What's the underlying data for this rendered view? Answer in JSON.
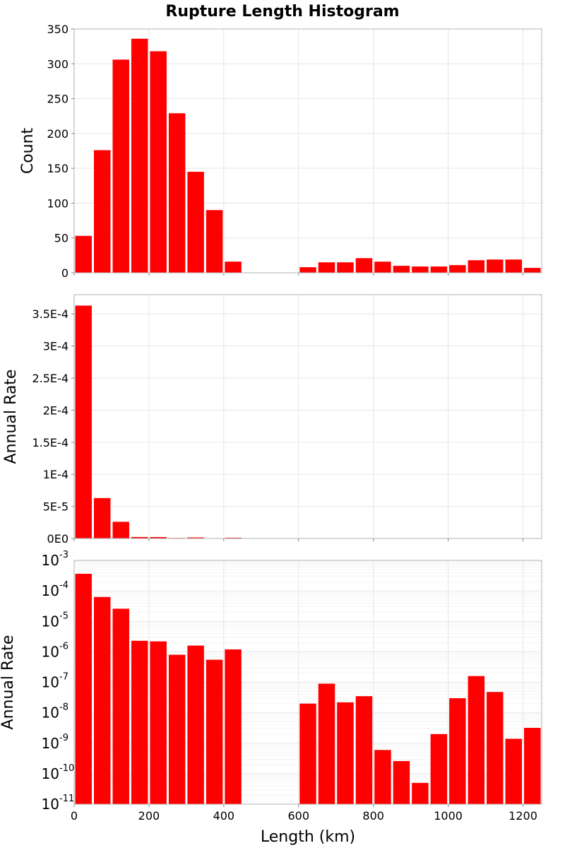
{
  "chart_data": {
    "title": "Rupture Length Histogram",
    "type": "bar",
    "x": {
      "label": "Length (km)",
      "range": [
        0,
        1250
      ],
      "ticks": [
        0,
        200,
        400,
        600,
        800,
        1000,
        1200
      ],
      "bin_width": 50,
      "bin_centers": [
        25,
        75,
        125,
        175,
        225,
        275,
        325,
        375,
        425,
        475,
        525,
        575,
        625,
        675,
        725,
        775,
        825,
        875,
        925,
        975,
        1025,
        1075,
        1125,
        1175,
        1225
      ]
    },
    "panels": [
      {
        "name": "count",
        "ylabel": "Count",
        "scale": "linear",
        "ylim": [
          0,
          350
        ],
        "yticks": [
          0,
          50,
          100,
          150,
          200,
          250,
          300,
          350
        ],
        "ytick_labels": [
          "0",
          "50",
          "100",
          "150",
          "200",
          "250",
          "300",
          "350"
        ],
        "values": [
          53,
          176,
          306,
          336,
          318,
          229,
          145,
          90,
          16,
          0,
          0,
          0,
          8,
          15,
          15,
          21,
          16,
          10,
          9,
          9,
          11,
          18,
          19,
          19,
          7
        ]
      },
      {
        "name": "rate-linear",
        "ylabel": "Annual Rate",
        "scale": "linear",
        "ylim": [
          0,
          0.00038
        ],
        "yticks": [
          0,
          5e-05,
          0.0001,
          0.00015,
          0.0002,
          0.00025,
          0.0003,
          0.00035
        ],
        "ytick_labels": [
          "0E0",
          "5E-5",
          "1E-4",
          "1.5E-4",
          "2E-4",
          "2.5E-4",
          "3E-4",
          "3.5E-4"
        ],
        "values": [
          0.000363,
          6.3e-05,
          2.6e-05,
          2.3e-06,
          2.2e-06,
          8e-07,
          1.6e-06,
          5.5e-07,
          1.2e-06,
          0,
          0,
          0,
          2e-08,
          9e-08,
          2.2e-08,
          3.5e-08,
          6e-10,
          2.6e-10,
          5e-11,
          2e-09,
          3e-08,
          1.6e-07,
          4.8e-08,
          1.4e-09,
          3.2e-09
        ]
      },
      {
        "name": "rate-log",
        "ylabel": "Annual Rate",
        "scale": "log",
        "ylim": [
          1e-11,
          0.001
        ],
        "ytick_exponents": [
          -11,
          -10,
          -9,
          -8,
          -7,
          -6,
          -5,
          -4,
          -3
        ],
        "ytick_base": "10",
        "values": [
          0.000363,
          6.3e-05,
          2.6e-05,
          2.3e-06,
          2.2e-06,
          8e-07,
          1.6e-06,
          5.5e-07,
          1.2e-06,
          0,
          0,
          0,
          2e-08,
          9e-08,
          2.2e-08,
          3.5e-08,
          6e-10,
          2.6e-10,
          5e-11,
          2e-09,
          3e-08,
          1.6e-07,
          4.8e-08,
          1.4e-09,
          3.2e-09
        ]
      }
    ]
  },
  "colors": {
    "bar": "#ff0000",
    "grid": "#e6e6e6",
    "frame": "#b0b0b0"
  }
}
